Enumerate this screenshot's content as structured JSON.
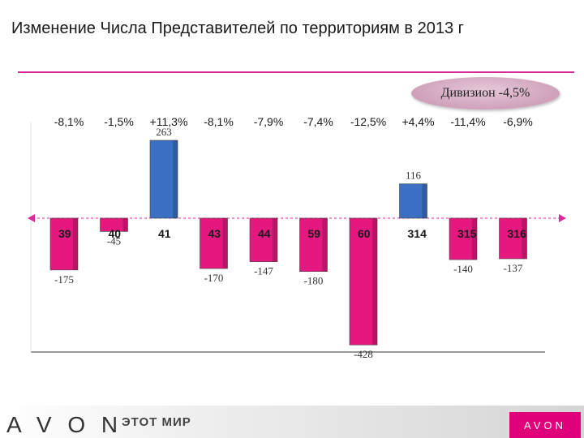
{
  "page": {
    "title": "Изменение  Числа Представителей по территориям в 2013 г",
    "division_badge": "Дивизион  -4,5%",
    "footer": {
      "logo": "A V O N",
      "slogan": "ЭТОТ МИР",
      "corner_logo": "AVON"
    }
  },
  "colors": {
    "negative": "#e4187f",
    "positive": "#3a6fc4",
    "accent": "#d62d9a"
  },
  "chart_data": {
    "type": "bar",
    "title": "Изменение  Числа Представителей по территориям в 2013 г",
    "categories": [
      "39",
      "40",
      "41",
      "43",
      "44",
      "59",
      "60",
      "314",
      "315",
      "316"
    ],
    "values": [
      -175,
      -45,
      263,
      -170,
      -147,
      -180,
      -428,
      116,
      -140,
      -137
    ],
    "value_labels": [
      "-175",
      "-45",
      "263",
      "-170",
      "-147",
      "-180",
      "-428",
      "116",
      "-140",
      "-137"
    ],
    "percent_changes": [
      "-8,1%",
      "-1,5%",
      "+11,3%",
      "-8,1%",
      "-7,9%",
      "-7,4%",
      "-12,5%",
      "+4,4%",
      "-11,4%",
      "-6,9%"
    ],
    "ylim": [
      -428,
      263
    ],
    "grid": false,
    "legend": "none"
  }
}
